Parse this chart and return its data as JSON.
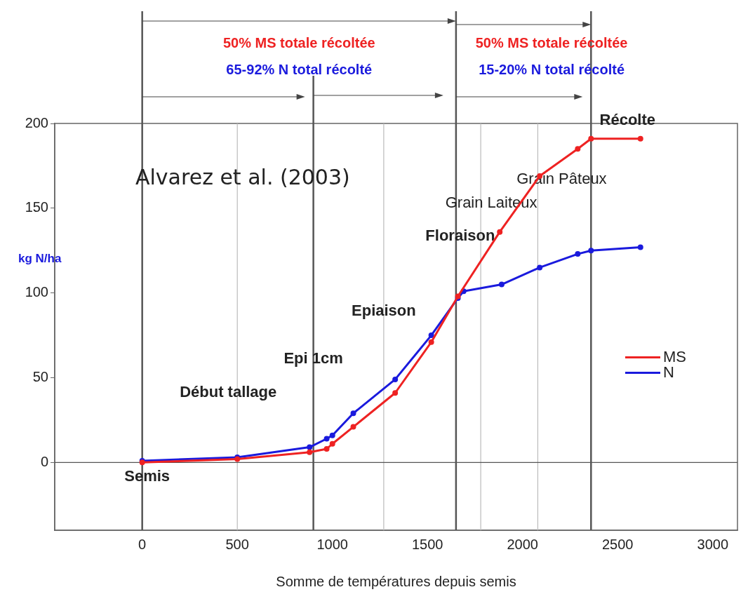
{
  "chart_data": {
    "type": "line",
    "xlabel": "Somme de températures depuis semis",
    "ylabel": "kg N/ha",
    "xlim": [
      -460,
      3130
    ],
    "ylim": [
      -40,
      200
    ],
    "xticks": [
      0,
      500,
      {
        "value": 1000,
        "label": "1000"
      },
      {
        "value": 1500,
        "label": "1500"
      },
      {
        "value": 2000,
        "label": "2000"
      },
      {
        "value": 2500,
        "label": "2500"
      },
      {
        "value": 3000,
        "label": "3000"
      }
    ],
    "yticks": [
      0,
      50,
      100,
      150,
      200
    ],
    "series": [
      {
        "name": "MS",
        "color": "#ee2222",
        "x": [
          0,
          500,
          880,
          970,
          1000,
          1110,
          1330,
          1520,
          1660,
          1880,
          2090,
          2290,
          2360,
          2620
        ],
        "values": [
          0,
          2,
          6,
          8,
          11,
          21,
          41,
          71,
          98,
          136,
          169,
          185,
          191,
          191
        ]
      },
      {
        "name": "N",
        "color": "#1a1add",
        "x": [
          0,
          500,
          880,
          970,
          1000,
          1110,
          1330,
          1520,
          1660,
          1690,
          1890,
          2090,
          2290,
          2360,
          2620
        ],
        "values": [
          1,
          3,
          9,
          14,
          16,
          29,
          49,
          75,
          97,
          101,
          105,
          115,
          123,
          125,
          127
        ]
      }
    ],
    "marker": "circle",
    "line_style": "solid",
    "grid": false,
    "legend": "right",
    "ref_lines": [
      {
        "axis": "x",
        "value": 0,
        "color": "#555555",
        "label": "Semis"
      },
      {
        "axis": "x",
        "value": 500,
        "color": "#bbbbbb",
        "label": "Début tallage"
      },
      {
        "axis": "x",
        "value": 900,
        "color": "#555555",
        "label": "Epi 1cm"
      },
      {
        "axis": "x",
        "value": 1270,
        "color": "#bbbbbb",
        "label": "Epiaison"
      },
      {
        "axis": "x",
        "value": 1650,
        "color": "#555555",
        "label": "Floraison"
      },
      {
        "axis": "x",
        "value": 1780,
        "color": "#bbbbbb",
        "label": "Grain Laiteux"
      },
      {
        "axis": "x",
        "value": 2080,
        "color": "#bbbbbb",
        "label": "Grain Pâteux"
      },
      {
        "axis": "x",
        "value": 2360,
        "color": "#555555",
        "label": "Récolte"
      },
      {
        "axis": "y",
        "value": 0,
        "color": "#555555"
      }
    ],
    "annotations": [
      "50% MS totale récoltée",
      "65-92% N total récolté",
      "50% MS totale récoltée",
      "15-20% N total récolté",
      "Alvarez et al. (2003)"
    ]
  }
}
